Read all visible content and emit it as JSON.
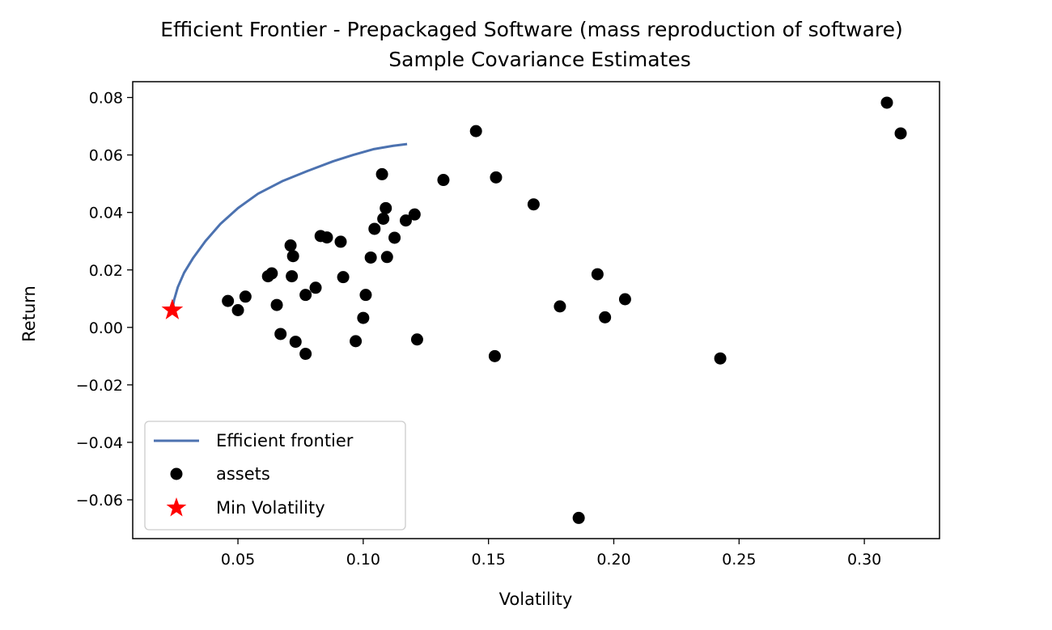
{
  "chart_data": {
    "type": "scatter",
    "title": "Efficient Frontier - Prepackaged Software (mass reproduction of software)",
    "subtitle": "Sample Covariance Estimates",
    "xlabel": "Volatility",
    "ylabel": "Return",
    "xlim": [
      0.008,
      0.33
    ],
    "ylim": [
      -0.0735,
      0.0855
    ],
    "x_ticks": [
      {
        "value": 0.05,
        "label": "0.05"
      },
      {
        "value": 0.1,
        "label": "0.10"
      },
      {
        "value": 0.15,
        "label": "0.15"
      },
      {
        "value": 0.2,
        "label": "0.20"
      },
      {
        "value": 0.25,
        "label": "0.25"
      },
      {
        "value": 0.3,
        "label": "0.30"
      }
    ],
    "y_ticks": [
      {
        "value": 0.08,
        "label": "0.08"
      },
      {
        "value": 0.06,
        "label": "0.06"
      },
      {
        "value": 0.04,
        "label": "0.04"
      },
      {
        "value": 0.02,
        "label": "0.02"
      },
      {
        "value": 0.0,
        "label": "0.00"
      },
      {
        "value": -0.02,
        "label": "−0.02"
      },
      {
        "value": -0.04,
        "label": "−0.04"
      },
      {
        "value": -0.06,
        "label": "−0.06"
      }
    ],
    "grid": false,
    "legend_position": "lower-left",
    "series": [
      {
        "name": "Efficient frontier",
        "kind": "line",
        "color": "#4c72b0",
        "points": [
          [
            0.0238,
            0.006
          ],
          [
            0.0245,
            0.0095
          ],
          [
            0.026,
            0.014
          ],
          [
            0.0285,
            0.019
          ],
          [
            0.032,
            0.024
          ],
          [
            0.037,
            0.03
          ],
          [
            0.043,
            0.036
          ],
          [
            0.05,
            0.0415
          ],
          [
            0.058,
            0.0465
          ],
          [
            0.068,
            0.051
          ],
          [
            0.078,
            0.0545
          ],
          [
            0.088,
            0.0578
          ],
          [
            0.096,
            0.06
          ],
          [
            0.104,
            0.062
          ],
          [
            0.112,
            0.0632
          ],
          [
            0.1175,
            0.0638
          ]
        ]
      },
      {
        "name": "assets",
        "kind": "scatter",
        "color": "#000000",
        "points": [
          [
            0.046,
            0.0092
          ],
          [
            0.05,
            0.006
          ],
          [
            0.053,
            0.0107
          ],
          [
            0.062,
            0.0178
          ],
          [
            0.0635,
            0.0188
          ],
          [
            0.0655,
            0.0078
          ],
          [
            0.067,
            -0.0023
          ],
          [
            0.071,
            0.0285
          ],
          [
            0.072,
            0.0248
          ],
          [
            0.0715,
            0.0178
          ],
          [
            0.073,
            -0.005
          ],
          [
            0.077,
            0.0113
          ],
          [
            0.077,
            -0.0092
          ],
          [
            0.081,
            0.0138
          ],
          [
            0.083,
            0.0318
          ],
          [
            0.0855,
            0.0313
          ],
          [
            0.091,
            0.0298
          ],
          [
            0.092,
            0.0175
          ],
          [
            0.097,
            -0.0048
          ],
          [
            0.1,
            0.0033
          ],
          [
            0.101,
            0.0113
          ],
          [
            0.103,
            0.0243
          ],
          [
            0.1045,
            0.0343
          ],
          [
            0.1075,
            0.0533
          ],
          [
            0.108,
            0.0378
          ],
          [
            0.109,
            0.0415
          ],
          [
            0.1095,
            0.0245
          ],
          [
            0.1125,
            0.0312
          ],
          [
            0.117,
            0.0372
          ],
          [
            0.1205,
            0.0393
          ],
          [
            0.1215,
            -0.0042
          ],
          [
            0.132,
            0.0513
          ],
          [
            0.145,
            0.0683
          ],
          [
            0.1525,
            -0.01
          ],
          [
            0.153,
            0.0522
          ],
          [
            0.168,
            0.0428
          ],
          [
            0.1785,
            0.0073
          ],
          [
            0.186,
            -0.0663
          ],
          [
            0.1935,
            0.0185
          ],
          [
            0.1965,
            0.0035
          ],
          [
            0.2045,
            0.0098
          ],
          [
            0.2425,
            -0.0108
          ],
          [
            0.309,
            0.0782
          ],
          [
            0.3145,
            0.0675
          ]
        ]
      },
      {
        "name": "Min Volatility",
        "kind": "marker",
        "marker": "star",
        "color": "#ff0000",
        "points": [
          [
            0.0238,
            0.006
          ]
        ]
      }
    ]
  }
}
